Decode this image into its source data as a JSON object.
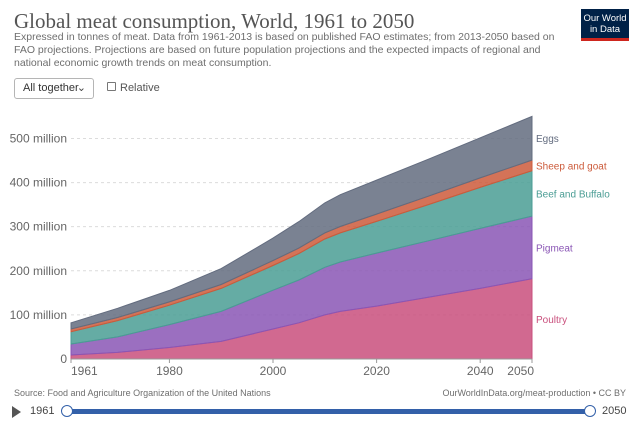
{
  "header": {
    "title": "Global meat consumption, World, 1961 to 2050",
    "subtitle": "Expressed in tonnes of meat. Data from 1961-2013 is based on published FAO estimates; from 2013-2050 based on FAO projections. Projections are based on future population projections and the expected impacts of regional and national economic growth trends on meat consumption.",
    "logo_line1": "Our World",
    "logo_line2": "in Data"
  },
  "controls": {
    "select_label": "All together",
    "checkbox_label": "Relative"
  },
  "footer": {
    "source": "Source: Food and Agriculture Organization of the United Nations",
    "url": "OurWorldInData.org/meat-production • CC BY"
  },
  "timeline": {
    "start": "1961",
    "end": "2050"
  },
  "chart_data": {
    "type": "area",
    "stacked": true,
    "title": "Global meat consumption, World, 1961 to 2050",
    "xlabel": "",
    "ylabel": "",
    "xlim": [
      1961,
      2050
    ],
    "ylim": [
      0,
      560000000
    ],
    "yticks": [
      0,
      100000000,
      200000000,
      300000000,
      400000000,
      500000000
    ],
    "ytick_labels": [
      "0",
      "100 million",
      "200 million",
      "300 million",
      "400 million",
      "500 million"
    ],
    "xticks": [
      1961,
      1980,
      2000,
      2020,
      2040,
      2050
    ],
    "grid": "horizontal dashed",
    "x": [
      1961,
      1970,
      1980,
      1990,
      2000,
      2005,
      2010,
      2013,
      2020,
      2030,
      2040,
      2050
    ],
    "series": [
      {
        "name": "Poultry",
        "color": "#c94f7c",
        "values": [
          9000000,
          15000000,
          26000000,
          40000000,
          68000000,
          82000000,
          100000000,
          108000000,
          120000000,
          140000000,
          160000000,
          182000000
        ]
      },
      {
        "name": "Pigmeat",
        "color": "#8a56b5",
        "values": [
          25000000,
          35000000,
          52000000,
          68000000,
          88000000,
          97000000,
          108000000,
          112000000,
          120000000,
          128000000,
          136000000,
          142000000
        ]
      },
      {
        "name": "Beef and Buffalo",
        "color": "#4a9d94",
        "values": [
          28000000,
          37000000,
          44000000,
          52000000,
          56000000,
          60000000,
          64000000,
          66000000,
          72000000,
          82000000,
          93000000,
          103000000
        ]
      },
      {
        "name": "Sheep and goat",
        "color": "#cc5b3b",
        "values": [
          6000000,
          7000000,
          7500000,
          9000000,
          11000000,
          12500000,
          14000000,
          14500000,
          16500000,
          19000000,
          21500000,
          24000000
        ]
      },
      {
        "name": "Eggs",
        "color": "#636c7f",
        "values": [
          14000000,
          21000000,
          26000000,
          36000000,
          51000000,
          60000000,
          68000000,
          72000000,
          77000000,
          84000000,
          91000000,
          99000000
        ]
      }
    ]
  }
}
